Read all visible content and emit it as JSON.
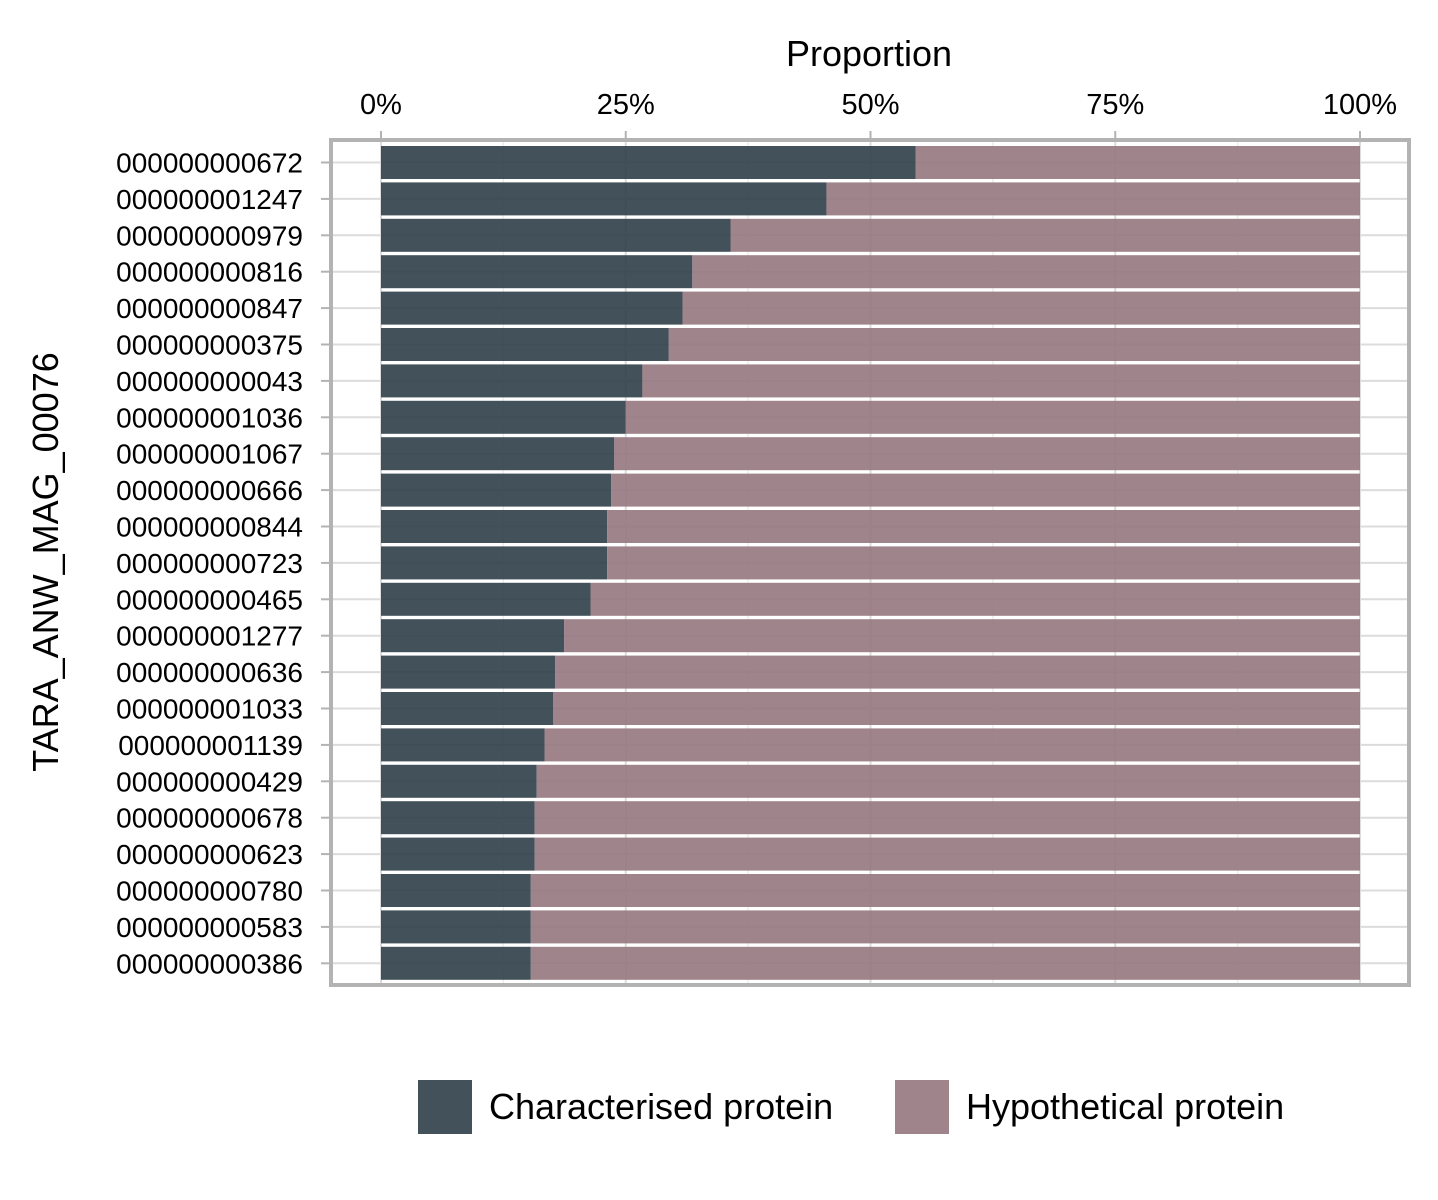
{
  "chart_data": {
    "type": "bar",
    "orientation": "horizontal",
    "stacked": true,
    "percent": true,
    "title": "",
    "xlabel": "Proportion",
    "ylabel": "TARA_ANW_MAG_00076",
    "x_axis_position": "top",
    "xlim": [
      0,
      1
    ],
    "xticks": [
      0,
      0.25,
      0.5,
      0.75,
      1
    ],
    "xtick_labels": [
      "0%",
      "25%",
      "50%",
      "75%",
      "100%"
    ],
    "grid": true,
    "legend_position": "bottom",
    "categories": [
      "000000000672",
      "000000001247",
      "000000000979",
      "000000000816",
      "000000000847",
      "000000000375",
      "000000000043",
      "000000001036",
      "000000001067",
      "000000000666",
      "000000000844",
      "000000000723",
      "000000000465",
      "000000001277",
      "000000000636",
      "000000001033",
      "000000001139",
      "000000000429",
      "000000000678",
      "000000000623",
      "000000000780",
      "000000000583",
      "000000000386"
    ],
    "series": [
      {
        "name": "Characterised protein",
        "color": "#2f3e48",
        "values": [
          0.546,
          0.455,
          0.357,
          0.318,
          0.308,
          0.294,
          0.267,
          0.25,
          0.238,
          0.235,
          0.231,
          0.231,
          0.214,
          0.187,
          0.178,
          0.176,
          0.167,
          0.159,
          0.157,
          0.157,
          0.153,
          0.153,
          0.153
        ]
      },
      {
        "name": "Hypothetical protein",
        "color": "#957780",
        "values": [
          0.454,
          0.545,
          0.643,
          0.682,
          0.692,
          0.706,
          0.733,
          0.75,
          0.762,
          0.765,
          0.769,
          0.769,
          0.786,
          0.813,
          0.822,
          0.824,
          0.833,
          0.841,
          0.843,
          0.843,
          0.847,
          0.847,
          0.847
        ]
      }
    ]
  }
}
